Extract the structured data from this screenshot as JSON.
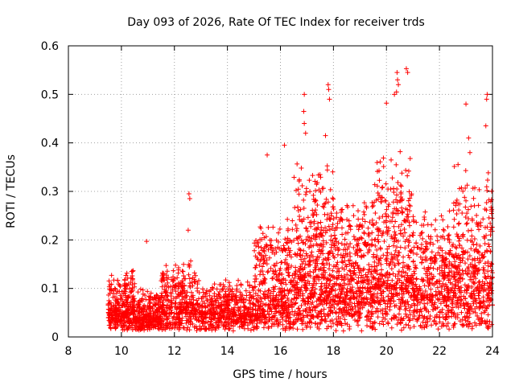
{
  "chart_data": {
    "type": "scatter",
    "title": "Day 093 of 2026, Rate Of TEC Index for receiver trds",
    "xlabel": "GPS time / hours",
    "ylabel": "ROTI / TECUs",
    "xlim": [
      8,
      24
    ],
    "ylim": [
      0,
      0.6
    ],
    "xticks": [
      "8",
      "10",
      "12",
      "14",
      "16",
      "18",
      "20",
      "22",
      "24"
    ],
    "yticks": [
      "0",
      "0.1",
      "0.2",
      "0.3",
      "0.4",
      "0.5",
      "0.6"
    ],
    "grid": true,
    "marker": "+",
    "color": "#ff0000",
    "series": [
      {
        "name": "ROTI",
        "segments": [
          {
            "x0": 9.5,
            "x1": 10.5,
            "base": 0.04,
            "spread": 0.09,
            "n": 320
          },
          {
            "x0": 10.5,
            "x1": 11.5,
            "base": 0.03,
            "spread": 0.06,
            "n": 260
          },
          {
            "x0": 11.5,
            "x1": 12.8,
            "base": 0.05,
            "spread": 0.1,
            "n": 340
          },
          {
            "x0": 12.8,
            "x1": 15.0,
            "base": 0.04,
            "spread": 0.07,
            "n": 480
          },
          {
            "x0": 15.0,
            "x1": 16.5,
            "base": 0.06,
            "spread": 0.18,
            "n": 420
          },
          {
            "x0": 16.5,
            "x1": 18.0,
            "base": 0.1,
            "spread": 0.25,
            "n": 520
          },
          {
            "x0": 18.0,
            "x1": 19.5,
            "base": 0.09,
            "spread": 0.2,
            "n": 460
          },
          {
            "x0": 19.5,
            "x1": 21.0,
            "base": 0.1,
            "spread": 0.28,
            "n": 480
          },
          {
            "x0": 21.0,
            "x1": 22.5,
            "base": 0.08,
            "spread": 0.18,
            "n": 400
          },
          {
            "x0": 22.5,
            "x1": 24.0,
            "base": 0.1,
            "spread": 0.25,
            "n": 460
          }
        ],
        "outliers": [
          {
            "x": 10.95,
            "y": 0.197
          },
          {
            "x": 12.55,
            "y": 0.295
          },
          {
            "x": 12.58,
            "y": 0.285
          },
          {
            "x": 12.52,
            "y": 0.22
          },
          {
            "x": 15.5,
            "y": 0.375
          },
          {
            "x": 16.15,
            "y": 0.395
          },
          {
            "x": 16.9,
            "y": 0.5
          },
          {
            "x": 16.88,
            "y": 0.465
          },
          {
            "x": 16.9,
            "y": 0.44
          },
          {
            "x": 16.95,
            "y": 0.42
          },
          {
            "x": 17.8,
            "y": 0.52
          },
          {
            "x": 17.82,
            "y": 0.51
          },
          {
            "x": 17.85,
            "y": 0.49
          },
          {
            "x": 17.7,
            "y": 0.415
          },
          {
            "x": 20.4,
            "y": 0.545
          },
          {
            "x": 20.42,
            "y": 0.53
          },
          {
            "x": 20.45,
            "y": 0.52
          },
          {
            "x": 20.38,
            "y": 0.505
          },
          {
            "x": 20.75,
            "y": 0.553
          },
          {
            "x": 20.8,
            "y": 0.545
          },
          {
            "x": 20.0,
            "y": 0.482
          },
          {
            "x": 20.3,
            "y": 0.5
          },
          {
            "x": 23.0,
            "y": 0.48
          },
          {
            "x": 23.8,
            "y": 0.5
          },
          {
            "x": 23.78,
            "y": 0.49
          },
          {
            "x": 23.75,
            "y": 0.435
          },
          {
            "x": 23.1,
            "y": 0.41
          },
          {
            "x": 23.15,
            "y": 0.38
          }
        ]
      }
    ]
  }
}
